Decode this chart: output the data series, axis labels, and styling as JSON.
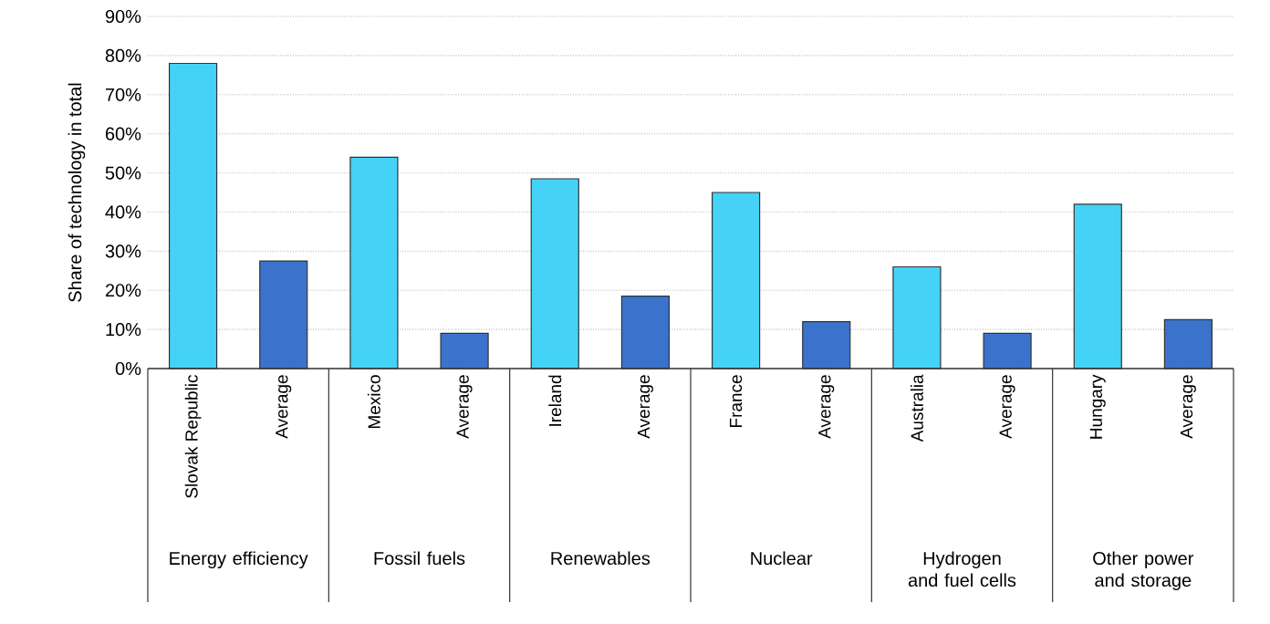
{
  "chart_data": {
    "type": "bar",
    "ylabel": "Share of technology in total",
    "categories": [
      "Slovak Republic",
      "Average",
      "Mexico",
      "Average",
      "Ireland",
      "Average",
      "France",
      "Average",
      "Australia",
      "Average",
      "Hungary",
      "Average"
    ],
    "values": [
      78,
      27.5,
      54,
      9,
      48.5,
      18.5,
      45,
      12,
      26,
      9,
      42,
      12.5
    ],
    "colors": [
      "#44d3f7",
      "#3b73cc",
      "#44d3f7",
      "#3b73cc",
      "#44d3f7",
      "#3b73cc",
      "#44d3f7",
      "#3b73cc",
      "#44d3f7",
      "#3b73cc",
      "#44d3f7",
      "#3b73cc"
    ],
    "ylim": [
      0,
      90
    ],
    "yticks": [
      {
        "value": 0,
        "label": "0%"
      },
      {
        "value": 10,
        "label": "10%"
      },
      {
        "value": 20,
        "label": "20%"
      },
      {
        "value": 30,
        "label": "30%"
      },
      {
        "value": 40,
        "label": "40%"
      },
      {
        "value": 50,
        "label": "50%"
      },
      {
        "value": 60,
        "label": "60%"
      },
      {
        "value": 70,
        "label": "70%"
      },
      {
        "value": 80,
        "label": "80%"
      },
      {
        "value": 90,
        "label": "90%"
      }
    ],
    "grid": "y",
    "annotations": [
      "Energy efficiency",
      "Fossil fuels",
      "Renewables",
      "Nuclear",
      "Hydrogen and fuel cells",
      "Other power and storage"
    ]
  }
}
